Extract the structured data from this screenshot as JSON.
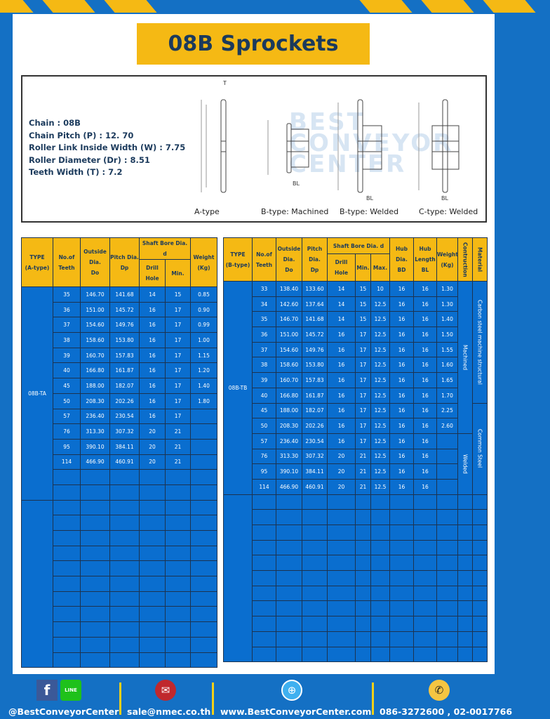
{
  "title": "08B Sprockets",
  "specs": {
    "chain": "Chain  : 08B",
    "pitch": "Chain Pitch (P)  :  12. 70",
    "link_width": "Roller Link Inside Width (W)  :  7.75",
    "roller_dia": "Roller Diameter (Dr)  : 8.51",
    "teeth_width": "Teeth Width (T)  :  7.2"
  },
  "diagram_labels": [
    "A-type",
    "B-type: Machined",
    "B-type: Welded",
    "C-type: Welded"
  ],
  "watermark": "BEST CONVEYOR CENTER",
  "table_a": {
    "headers": {
      "type": "TYPE",
      "type_sub": "(A-type)",
      "teeth": "No.of",
      "teeth_sub": "Teeth",
      "do": "Outside",
      "do_2": "Dia.",
      "do_3": "Do",
      "dp": "Pitch Dia.",
      "dp_sub": "Dp",
      "bore": "Shaft Bore Dia. d",
      "drill": "Drill Hole",
      "min": "Min.",
      "weight": "Weight",
      "weight_sub": "(Kg)"
    },
    "type_value": "08B-TA",
    "rows": [
      [
        "35",
        "146.70",
        "141.68",
        "14",
        "15",
        "0.85"
      ],
      [
        "36",
        "151.00",
        "145.72",
        "16",
        "17",
        "0.90"
      ],
      [
        "37",
        "154.60",
        "149.76",
        "16",
        "17",
        "0.99"
      ],
      [
        "38",
        "158.60",
        "153.80",
        "16",
        "17",
        "1.00"
      ],
      [
        "39",
        "160.70",
        "157.83",
        "16",
        "17",
        "1.15"
      ],
      [
        "40",
        "166.80",
        "161.87",
        "16",
        "17",
        "1.20"
      ],
      [
        "45",
        "188.00",
        "182.07",
        "16",
        "17",
        "1.40"
      ],
      [
        "50",
        "208.30",
        "202.26",
        "16",
        "17",
        "1.80"
      ],
      [
        "57",
        "236.40",
        "230.54",
        "16",
        "17",
        ""
      ],
      [
        "76",
        "313.30",
        "307.32",
        "20",
        "21",
        ""
      ],
      [
        "95",
        "390.10",
        "384.11",
        "20",
        "21",
        ""
      ],
      [
        "114",
        "466.90",
        "460.91",
        "20",
        "21",
        ""
      ]
    ]
  },
  "table_b": {
    "headers": {
      "type": "TYPE",
      "type_sub": "(B-type)",
      "teeth": "No.of",
      "teeth_sub": "Teeth",
      "do": "Outside",
      "do_2": "Dia.",
      "do_3": "Do",
      "dp": "Pitch Dia.",
      "dp_sub": "Dp",
      "bore": "Shaft Bore Dia. d",
      "drill": "Drill Hole",
      "min": "Min.",
      "max": "Max.",
      "bd": "Hub Dia.",
      "bd_sub": "BD",
      "bl": "Hub",
      "bl_2": "Length",
      "bl_3": "BL",
      "weight": "Weight",
      "weight_sub": "(Kg)",
      "construction": "Contruction",
      "material": "Material"
    },
    "type_value": "08B-TB",
    "construction": [
      "Machined",
      "Welded"
    ],
    "material": [
      "Carbon steel  machine structural",
      "Common Steel"
    ],
    "rows": [
      [
        "33",
        "138.40",
        "133.60",
        "14",
        "15",
        "10",
        "16",
        "16",
        "1.30"
      ],
      [
        "34",
        "142.60",
        "137.64",
        "14",
        "15",
        "12.5",
        "16",
        "16",
        "1.30"
      ],
      [
        "35",
        "146.70",
        "141.68",
        "14",
        "15",
        "12.5",
        "16",
        "16",
        "1.40"
      ],
      [
        "36",
        "151.00",
        "145.72",
        "16",
        "17",
        "12.5",
        "16",
        "16",
        "1.50"
      ],
      [
        "37",
        "154.60",
        "149.76",
        "16",
        "17",
        "12.5",
        "16",
        "16",
        "1.55"
      ],
      [
        "38",
        "158.60",
        "153.80",
        "16",
        "17",
        "12.5",
        "16",
        "16",
        "1.60"
      ],
      [
        "39",
        "160.70",
        "157.83",
        "16",
        "17",
        "12.5",
        "16",
        "16",
        "1.65"
      ],
      [
        "40",
        "166.80",
        "161.87",
        "16",
        "17",
        "12.5",
        "16",
        "16",
        "1.70"
      ],
      [
        "45",
        "188.00",
        "182.07",
        "16",
        "17",
        "12.5",
        "16",
        "16",
        "2.25"
      ],
      [
        "50",
        "208.30",
        "202.26",
        "16",
        "17",
        "12.5",
        "16",
        "16",
        "2.60"
      ],
      [
        "57",
        "236.40",
        "230.54",
        "16",
        "17",
        "12.5",
        "16",
        "16",
        ""
      ],
      [
        "76",
        "313.30",
        "307.32",
        "20",
        "21",
        "12.5",
        "16",
        "16",
        ""
      ],
      [
        "95",
        "390.10",
        "384.11",
        "20",
        "21",
        "12.5",
        "16",
        "16",
        ""
      ],
      [
        "114",
        "466.90",
        "460.91",
        "20",
        "21",
        "12.5",
        "16",
        "16",
        ""
      ]
    ]
  },
  "footer": {
    "social": "@BestConveyorCenter",
    "email": "sale@nmec.co.th",
    "website": "www.BestConveyorCenter.com",
    "phone": "086-3272600 , 02-0017766",
    "line_badge": "LINE"
  },
  "colors": {
    "background": "#1470c4",
    "accent": "#f5b914",
    "cell": "#0a6ecf",
    "title_text": "#1b3a5c"
  }
}
